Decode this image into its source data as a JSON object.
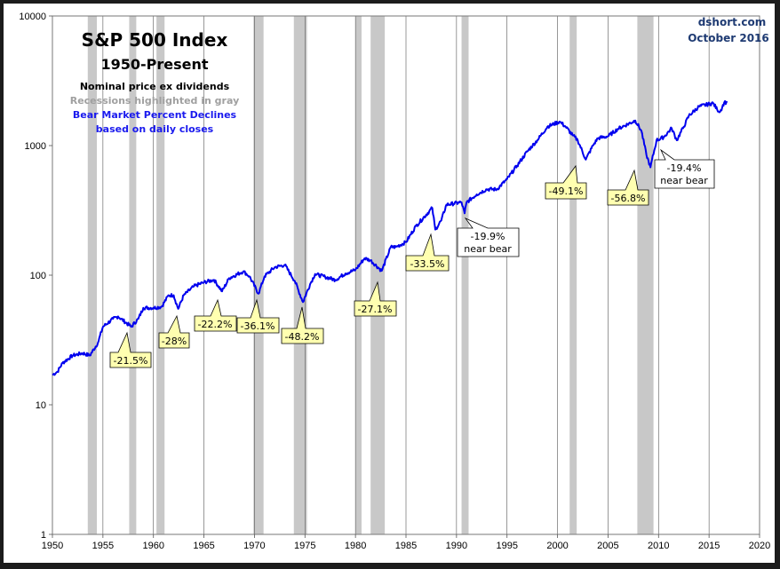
{
  "chart_data": {
    "type": "line",
    "title": "S&P 500 Index",
    "subtitle": "1950-Present",
    "notes": [
      "Nominal price ex dividends",
      "Recessions highlighted in gray"
    ],
    "blue_notes": [
      "Bear Market Percent Declines",
      "based on daily closes"
    ],
    "source": "dshort.com",
    "date": "October 2016",
    "yscale": "log",
    "xlim": [
      1950,
      2020
    ],
    "ylim": [
      1,
      10000
    ],
    "x_ticks": [
      "1950",
      "1955",
      "1960",
      "1965",
      "1970",
      "1975",
      "1980",
      "1985",
      "1990",
      "1995",
      "2000",
      "2005",
      "2010",
      "2015",
      "2020"
    ],
    "y_ticks": [
      "1",
      "10",
      "100",
      "1000",
      "10000"
    ],
    "grid": "vertical",
    "line_color": "#0000ee",
    "recession_color": "#c8c8c8",
    "recessions": [
      [
        1953.5,
        1954.4
      ],
      [
        1957.6,
        1958.3
      ],
      [
        1960.3,
        1961.1
      ],
      [
        1969.9,
        1970.9
      ],
      [
        1973.9,
        1975.2
      ],
      [
        1980.0,
        1980.6
      ],
      [
        1981.5,
        1982.9
      ],
      [
        1990.5,
        1991.2
      ],
      [
        2001.2,
        2001.9
      ],
      [
        2007.9,
        2009.5
      ]
    ],
    "series": [
      {
        "name": "S&P 500",
        "x": [
          1950,
          1950.5,
          1951,
          1952,
          1953,
          1953.7,
          1954.5,
          1955,
          1956,
          1956.5,
          1957.8,
          1958.5,
          1959,
          1960,
          1960.8,
          1961.5,
          1962.0,
          1962.45,
          1963,
          1964,
          1965,
          1966.0,
          1966.8,
          1967.5,
          1968.9,
          1969.5,
          1970.4,
          1971,
          1972,
          1973.0,
          1974.0,
          1974.8,
          1975.5,
          1976,
          1977,
          1978,
          1979,
          1980,
          1980.9,
          1981.5,
          1982.6,
          1983.5,
          1984,
          1985,
          1986,
          1987.6,
          1987.9,
          1988.5,
          1989,
          1990.5,
          1990.8,
          1991,
          1992,
          1993,
          1994,
          1995,
          1996,
          1997,
          1998,
          1999,
          2000.2,
          2000.8,
          2001.5,
          2002.0,
          2002.8,
          2003.5,
          2004,
          2005,
          2006,
          2007.7,
          2008.3,
          2008.8,
          2009.2,
          2009.8,
          2010.5,
          2011.3,
          2011.8,
          2012.5,
          2013,
          2014,
          2015.4,
          2015.8,
          2016.1,
          2016.5,
          2016.8
        ],
        "values": [
          17,
          18,
          21,
          24,
          25,
          24,
          30,
          40,
          46,
          48,
          40,
          46,
          56,
          56,
          57,
          70,
          70,
          55,
          70,
          82,
          88,
          92,
          75,
          95,
          107,
          98,
          72,
          98,
          115,
          120,
          90,
          62,
          85,
          102,
          97,
          92,
          103,
          110,
          135,
          130,
          108,
          165,
          165,
          180,
          240,
          330,
          225,
          265,
          350,
          365,
          300,
          365,
          420,
          460,
          460,
          550,
          700,
          900,
          1100,
          1400,
          1530,
          1400,
          1200,
          1100,
          780,
          1000,
          1140,
          1180,
          1350,
          1560,
          1300,
          850,
          680,
          1100,
          1160,
          1360,
          1100,
          1400,
          1700,
          2000,
          2130,
          1900,
          1830,
          2150,
          2150
        ]
      }
    ],
    "annotations": [
      {
        "label": "-21.5%"
      },
      {
        "label": "-28%"
      },
      {
        "label": "-22.2%"
      },
      {
        "label": "-36.1%"
      },
      {
        "label": "-48.2%"
      },
      {
        "label": "-27.1%"
      },
      {
        "label": "-33.5%"
      },
      {
        "label": "-19.9%",
        "sub": "near bear"
      },
      {
        "label": "-49.1%"
      },
      {
        "label": "-56.8%"
      },
      {
        "label": "-19.4%",
        "sub": "near bear"
      }
    ]
  }
}
